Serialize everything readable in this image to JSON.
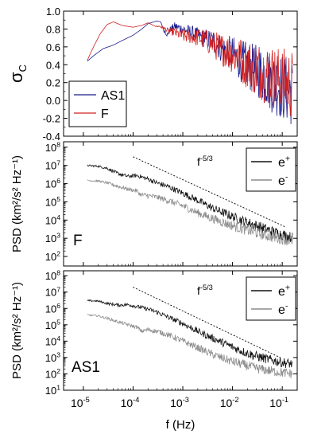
{
  "chart_data": [
    {
      "type": "line",
      "panel": "top",
      "ylabel_symbol": "σ",
      "ylabel_subscript": "C",
      "xscale": "log",
      "xlim": [
        4e-06,
        0.2
      ],
      "ylim": [
        -0.4,
        1.0
      ],
      "yticks": [
        -0.4,
        -0.2,
        0.0,
        0.2,
        0.4,
        0.6,
        0.8,
        1.0
      ],
      "yticklabels": [
        "-0.4",
        "-0.2",
        "0.0",
        "0.2",
        "0.4",
        "0.6",
        "0.8",
        "1.0"
      ],
      "legend_position": "bottom-left",
      "series": [
        {
          "name": "AS1",
          "color": "#1a1a8c",
          "x": [
            1.2e-05,
            1.6e-05,
            2.5e-05,
            4e-05,
            6e-05,
            0.0001,
            0.00015,
            0.0002,
            0.0003,
            0.00036,
            0.00042,
            0.0005,
            0.00056,
            0.0007,
            0.001,
            0.0015,
            0.0025,
            0.004,
            0.006,
            0.01,
            0.015,
            0.025,
            0.04,
            0.06,
            0.1,
            0.16
          ],
          "y": [
            0.44,
            0.5,
            0.58,
            0.62,
            0.67,
            0.73,
            0.8,
            0.86,
            0.89,
            0.88,
            0.78,
            0.73,
            0.8,
            0.83,
            0.8,
            0.76,
            0.7,
            0.67,
            0.58,
            0.52,
            0.44,
            0.36,
            0.3,
            0.22,
            0.15,
            0.1
          ],
          "noise": [
            0.0,
            0.0,
            0.0,
            0.0,
            0.0,
            0.0,
            0.0,
            0.0,
            0.0,
            0.0,
            0.02,
            0.03,
            0.03,
            0.05,
            0.06,
            0.08,
            0.1,
            0.13,
            0.16,
            0.2,
            0.24,
            0.28,
            0.32,
            0.36,
            0.38,
            0.4
          ]
        },
        {
          "name": "F",
          "color": "#d02020",
          "x": [
            1.2e-05,
            1.6e-05,
            2.2e-05,
            3e-05,
            4e-05,
            6e-05,
            0.0001,
            0.00015,
            0.0002,
            0.00028,
            0.00035,
            0.0005,
            0.0007,
            0.001,
            0.0015,
            0.0025,
            0.004,
            0.006,
            0.01,
            0.015,
            0.025,
            0.04,
            0.06,
            0.1,
            0.16
          ],
          "y": [
            0.45,
            0.6,
            0.75,
            0.85,
            0.88,
            0.84,
            0.82,
            0.84,
            0.87,
            0.83,
            0.83,
            0.78,
            0.76,
            0.72,
            0.72,
            0.69,
            0.63,
            0.58,
            0.52,
            0.45,
            0.38,
            0.33,
            0.27,
            0.22,
            0.18
          ],
          "noise": [
            0.0,
            0.0,
            0.0,
            0.0,
            0.0,
            0.0,
            0.0,
            0.0,
            0.0,
            0.0,
            0.02,
            0.03,
            0.05,
            0.07,
            0.09,
            0.12,
            0.15,
            0.18,
            0.22,
            0.26,
            0.3,
            0.34,
            0.36,
            0.38,
            0.4
          ]
        }
      ]
    },
    {
      "type": "line",
      "panel": "middle",
      "panel_label": "F",
      "panel_label_color": "#b01818",
      "ylabel": "PSD (km²/s² Hz⁻¹)",
      "xscale": "log",
      "yscale": "log",
      "xlim": [
        4e-06,
        0.2
      ],
      "ylim": [
        30,
        200000000.0
      ],
      "yticks": [
        100,
        1000,
        10000,
        100000,
        1000000,
        10000000,
        100000000
      ],
      "ytick_exponents": [
        "2",
        "3",
        "4",
        "5",
        "6",
        "7",
        "8"
      ],
      "legend_position": "top-right",
      "reference_line": {
        "label_base": "f",
        "label_exp": "-5/3",
        "x": [
          0.0001,
          0.12
        ],
        "y": [
          30000000,
          4000
        ]
      },
      "series": [
        {
          "name_base": "e",
          "name_sup": "+",
          "color": "#111111",
          "x": [
            1.2e-05,
            2e-05,
            3e-05,
            5e-05,
            8e-05,
            0.00012,
            0.0002,
            0.0003,
            0.0005,
            0.001,
            0.002,
            0.004,
            0.008,
            0.015,
            0.03,
            0.06,
            0.1,
            0.16
          ],
          "y": [
            10000000,
            9000000,
            7000000,
            3500000,
            2500000,
            2800000,
            1800000,
            1100000,
            700000,
            300000,
            120000,
            45000,
            20000,
            10000,
            5000,
            2500,
            1600,
            1100
          ],
          "noise": [
            0.05,
            0.05,
            0.08,
            0.1,
            0.1,
            0.12,
            0.12,
            0.15,
            0.15,
            0.18,
            0.2,
            0.22,
            0.25,
            0.27,
            0.3,
            0.3,
            0.3,
            0.3
          ]
        },
        {
          "name_base": "e",
          "name_sup": "-",
          "color": "#8c8c8c",
          "x": [
            1.2e-05,
            2e-05,
            3e-05,
            5e-05,
            8e-05,
            0.00012,
            0.00014,
            0.0002,
            0.0003,
            0.0005,
            0.001,
            0.002,
            0.004,
            0.008,
            0.015,
            0.03,
            0.06,
            0.1,
            0.16
          ],
          "y": [
            1500000,
            1400000,
            1100000,
            700000,
            500000,
            400000,
            250000,
            220000,
            180000,
            120000,
            60000,
            25000,
            12000,
            6000,
            3500,
            2000,
            1200,
            900,
            700
          ],
          "noise": [
            0.05,
            0.05,
            0.08,
            0.1,
            0.1,
            0.12,
            0.12,
            0.15,
            0.15,
            0.18,
            0.2,
            0.22,
            0.25,
            0.27,
            0.3,
            0.3,
            0.3,
            0.3,
            0.3
          ]
        }
      ]
    },
    {
      "type": "line",
      "panel": "bottom",
      "panel_label": "AS1",
      "panel_label_color": "#1a1a8c",
      "ylabel": "PSD (km²/s² Hz⁻¹)",
      "xlabel": "f (Hz)",
      "xscale": "log",
      "yscale": "log",
      "xlim": [
        4e-06,
        0.2
      ],
      "ylim": [
        10,
        200000000.0
      ],
      "yticks": [
        10,
        100,
        1000,
        10000,
        100000,
        1000000,
        10000000,
        100000000
      ],
      "ytick_exponents": [
        "1",
        "2",
        "3",
        "4",
        "5",
        "6",
        "7",
        "8"
      ],
      "xticks": [
        1e-05,
        0.0001,
        0.001,
        0.01,
        0.1
      ],
      "xtick_exponents": [
        "-5",
        "-4",
        "-3",
        "-2",
        "-1"
      ],
      "legend_position": "top-right",
      "reference_line": {
        "label_base": "f",
        "label_exp": "-5/3",
        "x": [
          0.0001,
          0.09
        ],
        "y": [
          20000000,
          1000
        ]
      },
      "series": [
        {
          "name_base": "e",
          "name_sup": "+",
          "color": "#111111",
          "x": [
            1.2e-05,
            2e-05,
            3e-05,
            5e-05,
            8e-05,
            0.00012,
            0.0002,
            0.0003,
            0.0005,
            0.001,
            0.002,
            0.004,
            0.008,
            0.015,
            0.03,
            0.06,
            0.1,
            0.16
          ],
          "y": [
            3000000,
            2800000,
            2000000,
            1600000,
            1700000,
            1300000,
            900000,
            600000,
            300000,
            120000,
            40000,
            15000,
            6000,
            2500,
            1200,
            700,
            500,
            400
          ],
          "noise": [
            0.05,
            0.05,
            0.08,
            0.1,
            0.1,
            0.12,
            0.12,
            0.15,
            0.15,
            0.18,
            0.2,
            0.22,
            0.25,
            0.27,
            0.3,
            0.3,
            0.3,
            0.3
          ]
        },
        {
          "name_base": "e",
          "name_sup": "-",
          "color": "#8c8c8c",
          "x": [
            1.2e-05,
            2e-05,
            3e-05,
            5e-05,
            8e-05,
            0.00012,
            0.00015,
            0.0002,
            0.0003,
            0.0005,
            0.001,
            0.002,
            0.004,
            0.008,
            0.015,
            0.03,
            0.06,
            0.1,
            0.16
          ],
          "y": [
            400000,
            350000,
            250000,
            150000,
            100000,
            70000,
            40000,
            50000,
            40000,
            25000,
            10000,
            4000,
            1500,
            700,
            400,
            220,
            150,
            120,
            100
          ],
          "noise": [
            0.05,
            0.05,
            0.08,
            0.1,
            0.1,
            0.12,
            0.12,
            0.15,
            0.15,
            0.18,
            0.2,
            0.22,
            0.25,
            0.27,
            0.3,
            0.3,
            0.3,
            0.3,
            0.3
          ]
        }
      ]
    }
  ]
}
